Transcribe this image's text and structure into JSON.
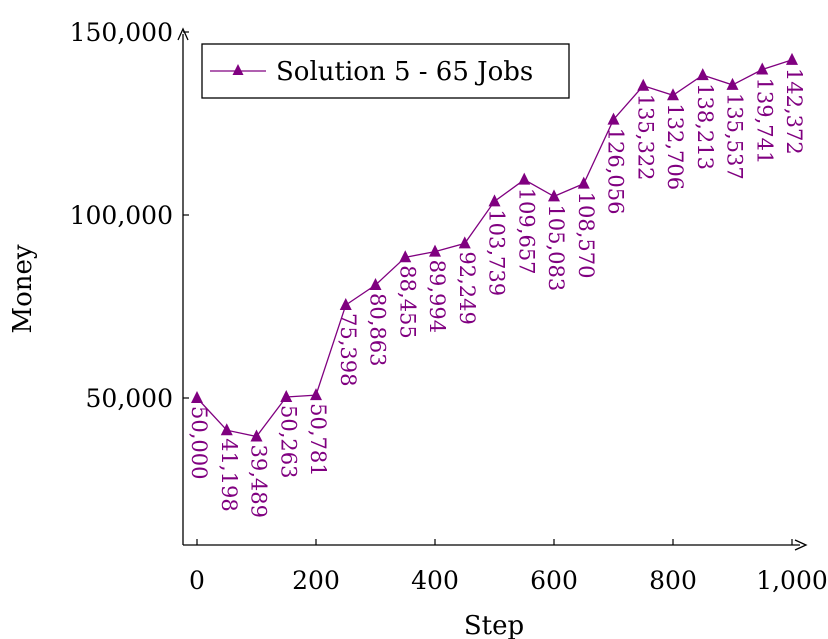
{
  "chart_data": {
    "type": "line",
    "xlabel": "Step",
    "ylabel": "Money",
    "xlim": [
      -10,
      1010
    ],
    "ylim": [
      10000,
      150000
    ],
    "xticks": [
      0,
      200,
      400,
      600,
      800,
      1000
    ],
    "xtick_labels": [
      "0",
      "200",
      "400",
      "600",
      "800",
      "1,000"
    ],
    "yticks": [
      50000,
      100000,
      150000
    ],
    "ytick_labels": [
      "50,000",
      "100,000",
      "150,000"
    ],
    "grid": false,
    "legend_position": "top-left",
    "series": [
      {
        "name": "Solution 5 - 65 Jobs",
        "color": "#800080",
        "marker": "triangle",
        "x": [
          0,
          50,
          100,
          150,
          200,
          250,
          300,
          350,
          400,
          450,
          500,
          550,
          600,
          650,
          700,
          750,
          800,
          850,
          900,
          950,
          1000
        ],
        "y": [
          50000,
          41198,
          39489,
          50263,
          50781,
          75398,
          80863,
          88455,
          89994,
          92249,
          103739,
          109657,
          105083,
          108570,
          126056,
          135322,
          132706,
          138213,
          135537,
          139741,
          142372
        ],
        "labels": [
          "50,000",
          "41,198",
          "39,489",
          "50,263",
          "50,781",
          "75,398",
          "80,863",
          "88,455",
          "89,994",
          "92,249",
          "103,739",
          "109,657",
          "105,083",
          "108,570",
          "126,056",
          "135,322",
          "132,706",
          "138,213",
          "135,537",
          "139,741",
          "142,372"
        ]
      }
    ]
  }
}
